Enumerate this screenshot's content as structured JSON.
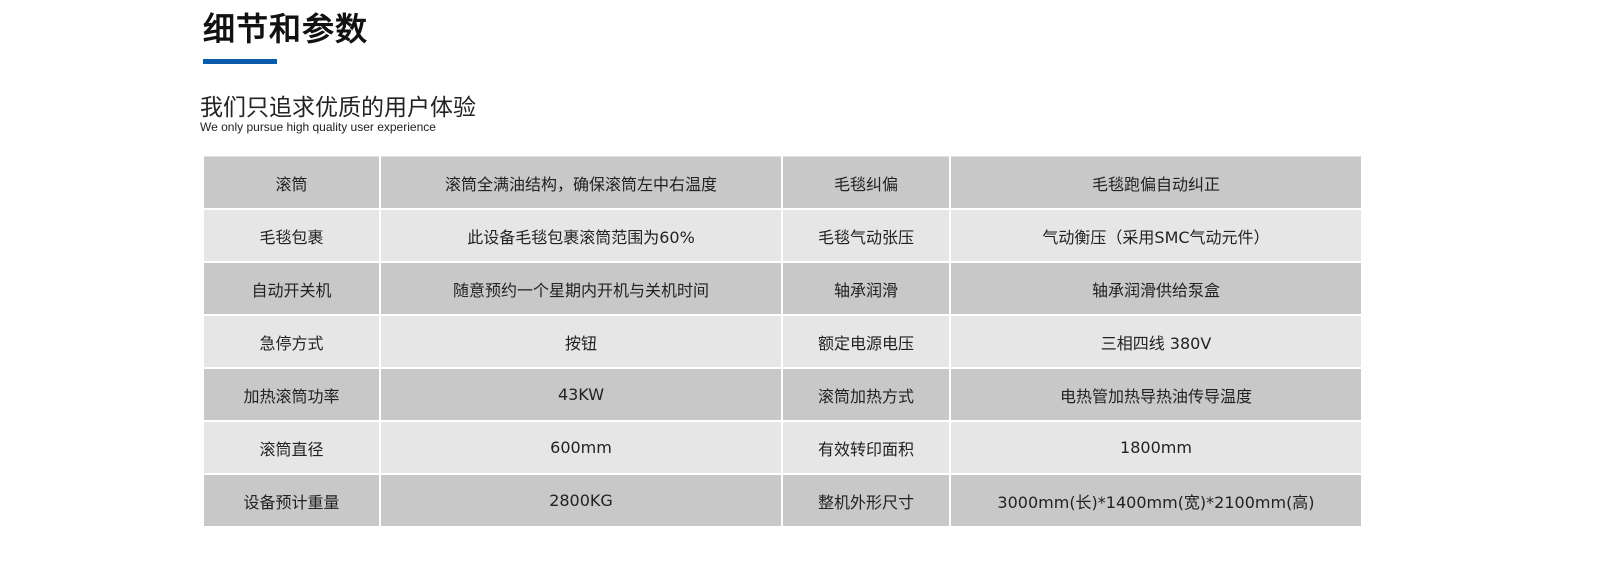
{
  "header": {
    "title": "细节和参数",
    "accent_color": "#0a5bab",
    "subtitle": "我们只追求优质的用户体验",
    "subtitle_en": "We only pursue high quality user experience"
  },
  "spec_table": {
    "row_colors": [
      "#c8c8c8",
      "#e6e6e6"
    ],
    "rows": [
      [
        "滚筒",
        "滚筒全满油结构，确保滚筒左中右温度",
        "毛毯纠偏",
        "毛毯跑偏自动纠正"
      ],
      [
        "毛毯包裹",
        "此设备毛毯包裹滚筒范围为60%",
        "毛毯气动张压",
        "气动衡压（采用SMC气动元件）"
      ],
      [
        "自动开关机",
        "随意预约一个星期内开机与关机时间",
        "轴承润滑",
        "轴承润滑供给泵盒"
      ],
      [
        "急停方式",
        "按钮",
        "额定电源电压",
        "三相四线 380V"
      ],
      [
        "加热滚筒功率",
        "43KW",
        "滚筒加热方式",
        "电热管加热导热油传导温度"
      ],
      [
        "滚筒直径",
        "600mm",
        "有效转印面积",
        "1800mm"
      ],
      [
        "设备预计重量",
        "2800KG",
        "整机外形尺寸",
        "3000mm(长)*1400mm(宽)*2100mm(高)"
      ]
    ]
  }
}
